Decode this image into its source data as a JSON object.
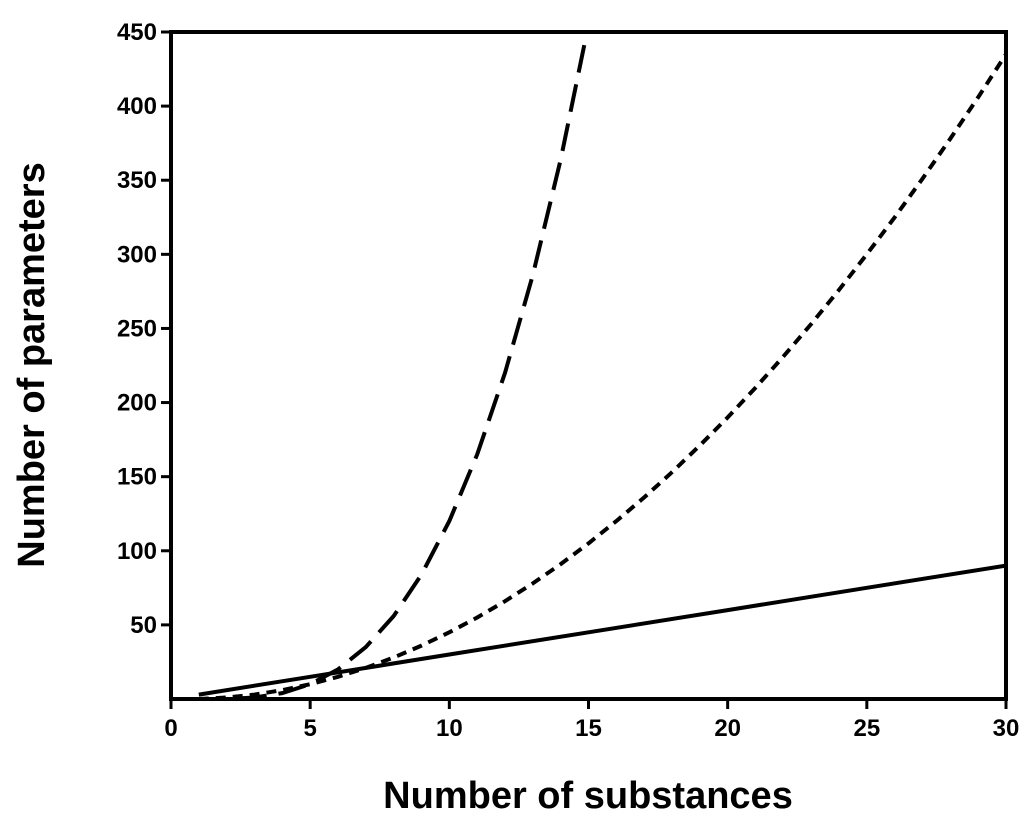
{
  "chart_data": {
    "type": "line",
    "title": "",
    "xlabel": "Number of substances",
    "ylabel": "Number of parameters",
    "xlim": [
      0,
      30
    ],
    "ylim": [
      0,
      450
    ],
    "x_ticks": [
      0,
      5,
      10,
      15,
      20,
      25,
      30
    ],
    "x_tick_labels": [
      "0",
      "5",
      "10",
      "15",
      "20",
      "25",
      "30"
    ],
    "y_ticks": [
      50,
      100,
      150,
      200,
      250,
      300,
      350,
      400,
      450
    ],
    "y_tick_labels": [
      "50",
      "100",
      "150",
      "200",
      "250",
      "300",
      "350",
      "400",
      "450"
    ],
    "grid": false,
    "legend": "none",
    "line_color": "#000000",
    "series": [
      {
        "style": "solid",
        "x": [
          1,
          5,
          10,
          15,
          20,
          25,
          30
        ],
        "y": [
          3,
          15,
          30,
          45,
          60,
          75,
          90
        ]
      },
      {
        "style": "short-dash",
        "x": [
          1,
          2,
          3,
          4,
          5,
          6,
          7,
          8,
          9,
          10,
          11,
          12,
          13,
          14,
          15,
          16,
          17,
          18,
          19,
          20,
          21,
          22,
          23,
          24,
          25,
          26,
          27,
          28,
          29,
          30
        ],
        "y": [
          0,
          1,
          3,
          6,
          10,
          15,
          21,
          28,
          36,
          45,
          55,
          66,
          78,
          91,
          105,
          120,
          136,
          153,
          171,
          190,
          210,
          231,
          253,
          276,
          300,
          325,
          351,
          378,
          406,
          435
        ]
      },
      {
        "style": "long-dash",
        "x": [
          1,
          2,
          3,
          4,
          5,
          6,
          7,
          8,
          9,
          10,
          11,
          12,
          13,
          14,
          15
        ],
        "y": [
          0,
          0,
          1,
          4,
          10,
          20,
          35,
          56,
          84,
          120,
          165,
          220,
          286,
          364,
          455
        ]
      }
    ]
  }
}
